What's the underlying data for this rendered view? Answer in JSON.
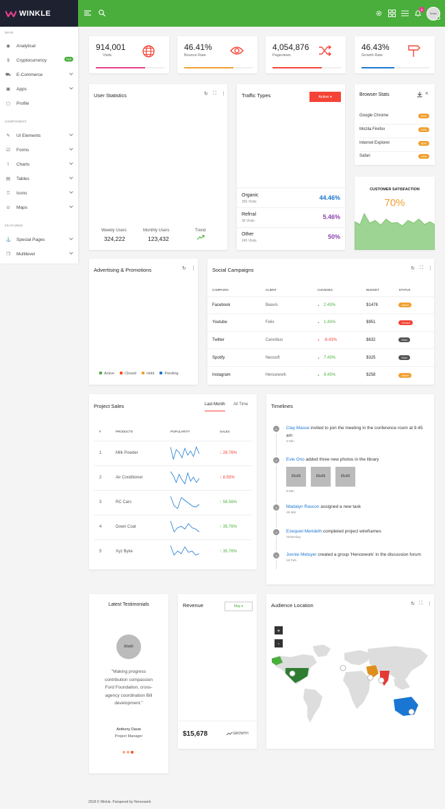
{
  "brand": {
    "name": "WINKLE"
  },
  "topbar": {
    "notif_count": "5",
    "avatar_text": "Avatar"
  },
  "sidebar": {
    "sections": [
      "MAIN",
      "COMPONENT",
      "FEATURED"
    ],
    "items": [
      {
        "label": "Analytical"
      },
      {
        "label": "Cryptocurrency",
        "badge": "Hot"
      },
      {
        "label": "E-Commerce"
      },
      {
        "label": "Apps"
      },
      {
        "label": "Profile"
      },
      {
        "label": "UI Elements"
      },
      {
        "label": "Forms"
      },
      {
        "label": "Charts"
      },
      {
        "label": "Tables"
      },
      {
        "label": "Icons"
      },
      {
        "label": "Maps"
      },
      {
        "label": "Special Pages"
      },
      {
        "label": "Multilevel"
      }
    ]
  },
  "stats": [
    {
      "value": "914,001",
      "label": "Visits",
      "progress": 0.72,
      "color": "#e83e8c"
    },
    {
      "value": "46.41%",
      "label": "Bounce Rate",
      "progress": 0.72,
      "color": "#f0a030"
    },
    {
      "value": "4,054,876",
      "label": "Pageviews",
      "progress": 0.72,
      "color": "#f44336"
    },
    {
      "value": "46.43%",
      "label": "Growth Rate",
      "progress": 0.48,
      "color": "#1976d2"
    }
  ],
  "user_stats": {
    "title": "User Statistics",
    "weekly_label": "Weekly Users",
    "weekly_value": "324,222",
    "monthly_label": "Monthly Users",
    "monthly_value": "123,432",
    "trend_label": "Trend"
  },
  "traffic": {
    "title": "Traffic Types",
    "action": "Action ▾",
    "rows": [
      {
        "name": "Organic",
        "sub": "356 Visits",
        "pct": "44.46%",
        "color": "#1976d2"
      },
      {
        "name": "Refrral",
        "sub": "36 Visits",
        "pct": "5.46%",
        "color": "#8e44ad"
      },
      {
        "name": "Other",
        "sub": "245 Visits",
        "pct": "50%",
        "color": "#8e44ad"
      }
    ]
  },
  "browser": {
    "title": "Browser Stats",
    "rows": [
      {
        "name": "Google Chrome",
        "pct": "50%"
      },
      {
        "name": "Mozila Firefox",
        "pct": "10%"
      },
      {
        "name": "Internet Explorer",
        "pct": "80%"
      },
      {
        "name": "Safari",
        "pct": "10%"
      }
    ]
  },
  "satisfaction": {
    "title": "CUSTOMER SATISFACTION",
    "value": "70%"
  },
  "advertising": {
    "title": "Advertising & Promotions",
    "legend": [
      {
        "label": "Active",
        "color": "#4aae3c"
      },
      {
        "label": "Closed",
        "color": "#f4511e"
      },
      {
        "label": "Hold",
        "color": "#f0a030"
      },
      {
        "label": "Pending",
        "color": "#1976d2"
      }
    ]
  },
  "social": {
    "title": "Social Campaigns",
    "headers": [
      "CAMPAIGN",
      "CLIENT",
      "CHANGES",
      "BUDGET",
      "STATUS"
    ],
    "rows": [
      {
        "campaign": "Facebook",
        "client": "Beavis",
        "change": "2.43%",
        "up": true,
        "budget": "$1478",
        "status": "Active",
        "scolor": "#f0a030"
      },
      {
        "campaign": "Youtube",
        "client": "Felix",
        "change": "1.43%",
        "up": true,
        "budget": "$951",
        "status": "Closed",
        "scolor": "#f44336"
      },
      {
        "campaign": "Twitter",
        "client": "Cannibus",
        "change": "-8.43%",
        "up": false,
        "budget": "$632",
        "status": "Hold",
        "scolor": "#555"
      },
      {
        "campaign": "Spotify",
        "client": "Neosoft",
        "change": "7.43%",
        "up": true,
        "budget": "$325",
        "status": "Hold",
        "scolor": "#555"
      },
      {
        "campaign": "Instagram",
        "client": "Hencework",
        "change": "9.43%",
        "up": true,
        "budget": "$258",
        "status": "Active",
        "scolor": "#f0a030"
      }
    ]
  },
  "project_sales": {
    "title": "Project Sales",
    "tab_active": "Last Month",
    "tab_other": "All Time",
    "headers": [
      "#",
      "PRODUCTS",
      "POPULARITY",
      "SALES"
    ],
    "rows": [
      {
        "num": "1",
        "product": "Milk Powder",
        "sales": "28.76%",
        "up": false
      },
      {
        "num": "2",
        "product": "Air Conditioner",
        "sales": "8.55%",
        "up": false
      },
      {
        "num": "3",
        "product": "RC Cars",
        "sales": "58.56%",
        "up": true
      },
      {
        "num": "4",
        "product": "Down Coat",
        "sales": "35.76%",
        "up": true
      },
      {
        "num": "5",
        "product": "Xyz Byke",
        "sales": "35.76%",
        "up": true
      }
    ]
  },
  "timelines": {
    "title": "Timelines",
    "items": [
      {
        "name": "Clay Masse",
        "text": " invited to join the meeting in the conference room at 9.45 am",
        "time": "3 Min"
      },
      {
        "name": "Evie Ono",
        "text": " added three new photos in the library",
        "time": "8 Min",
        "photos": [
          "65x65",
          "65x65",
          "65x65"
        ]
      },
      {
        "name": "Madalyn Rascon",
        "text": " assigned a new task",
        "time": "28 Min"
      },
      {
        "name": "Ezequiel Merideth",
        "text": " completed project wireframes",
        "time": "Yesterday"
      },
      {
        "name": "Jonnie Metoyer",
        "text": " created a group 'Hencework' in the discussion forum",
        "time": "18 Feb"
      }
    ]
  },
  "testimonials": {
    "title": "Latest Testimonials",
    "avatar": "80x80",
    "quote": "\"Making progress contribution compassion Ford Foundation, cross-agency coordination Bill development.\"",
    "name": "Anthony Davie",
    "role": "Project Manager"
  },
  "revenue": {
    "title": "Revenue",
    "select": "May ▾",
    "value": "$15,678",
    "growth": "GROWTH"
  },
  "audience": {
    "title": "Audience Location",
    "zoom_in": "+",
    "zoom_out": "-"
  },
  "footer": {
    "text": "2018 © Winkle. Pampered by Hencework"
  }
}
